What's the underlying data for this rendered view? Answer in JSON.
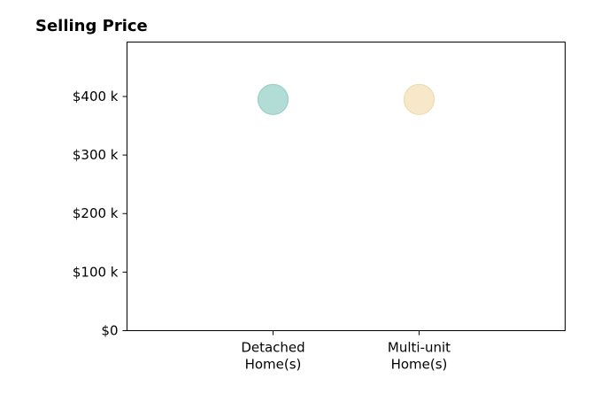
{
  "chart_data": {
    "type": "scatter",
    "title": "Selling Price",
    "xlabel": "",
    "ylabel": "",
    "categories": [
      [
        "Detached",
        "Home(s)"
      ],
      [
        "Multi-unit",
        "Home(s)"
      ]
    ],
    "y_ticks": [
      0,
      100000,
      200000,
      300000,
      400000
    ],
    "y_tick_labels": [
      "$0",
      "$100 k",
      "$200 k",
      "$300 k",
      "$400 k"
    ],
    "ylim": [
      0,
      493000
    ],
    "xlim": [
      -1,
      2
    ],
    "grid": false,
    "legend": "none",
    "points": [
      {
        "x": 0,
        "y": 395000,
        "color": "#b2dcd6",
        "stroke": "#9bcfc8"
      },
      {
        "x": 1,
        "y": 395000,
        "color": "#f6e8c8",
        "stroke": "#efdcb0"
      }
    ]
  }
}
